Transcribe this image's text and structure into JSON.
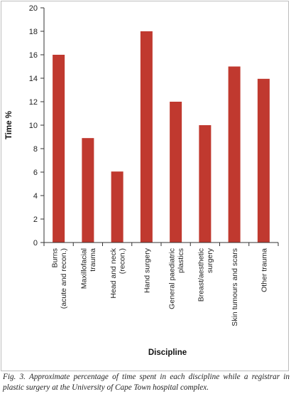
{
  "chart_data": {
    "type": "bar",
    "categories": [
      [
        "Burns",
        "(acute and recon.)"
      ],
      [
        "Maxillofacial",
        "trauma"
      ],
      [
        "Head and neck",
        "(recon.)"
      ],
      [
        "Hand surgery"
      ],
      [
        "General paediatric",
        "plastics"
      ],
      [
        "Breast/aesthetic",
        "surgery"
      ],
      [
        "Skin tumours and scars"
      ],
      [
        "Other trauma"
      ]
    ],
    "values": [
      16,
      8.9,
      6.05,
      18,
      12,
      10,
      15,
      13.95
    ],
    "xlabel": "Discipline",
    "ylabel": "Time %",
    "ylim": [
      0,
      20
    ],
    "yticks": [
      0,
      2,
      4,
      6,
      8,
      10,
      12,
      14,
      16,
      18,
      20
    ],
    "bar_color": "#c0392f",
    "grid": false,
    "legend": "none"
  },
  "caption": "Fig. 3. Approximate percentage of time spent in each discipline while a registrar in plastic surgery at the University of Cape Town hospital complex."
}
